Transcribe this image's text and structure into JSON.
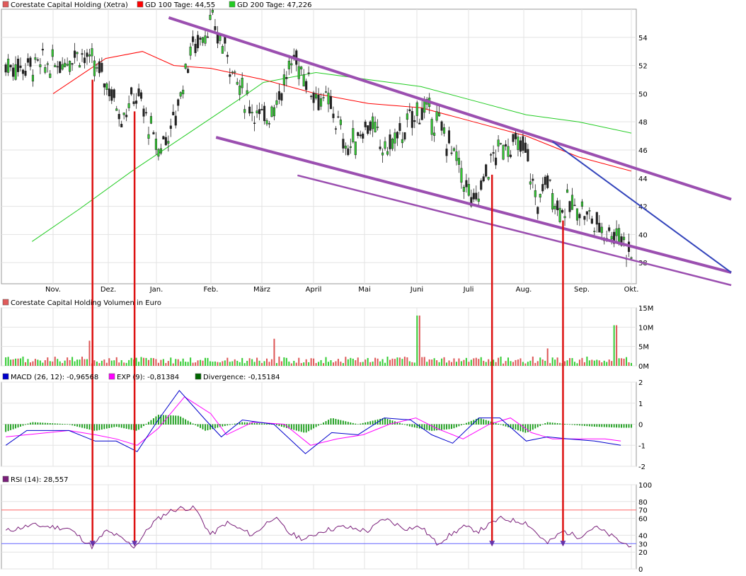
{
  "legends": {
    "price": [
      {
        "label": "Corestate Capital Holding (Xetra)",
        "color": "#e05a5a"
      },
      {
        "label": "GD 100 Tage: 44,55",
        "color": "#ff0000"
      },
      {
        "label": "GD 200 Tage: 47,226",
        "color": "#22cc22"
      }
    ],
    "volume": [
      {
        "label": "Corestate Capital Holding Volumen in Euro",
        "color": "#e05a5a"
      }
    ],
    "macd": [
      {
        "label": "MACD (26, 12): -0,96568",
        "color": "#0000cc"
      },
      {
        "label": "EXP (9): -0,81384",
        "color": "#ff00ff"
      },
      {
        "label": "Divergence: -0,15184",
        "color": "#006600"
      }
    ],
    "rsi": [
      {
        "label": "RSI (14): 28,557",
        "color": "#7a1f7a"
      }
    ]
  },
  "chart_data": {
    "type": "line",
    "months": [
      "Nov.",
      "Dez.",
      "Jan.",
      "Feb.",
      "März",
      "April",
      "Mai",
      "Juni",
      "Juli",
      "Aug.",
      "Sep.",
      "Okt."
    ],
    "price_axis": {
      "ticks": [
        "38",
        "40",
        "42",
        "44",
        "46",
        "48",
        "50",
        "52",
        "54"
      ],
      "ylim": [
        36.5,
        56
      ]
    },
    "volume_axis": {
      "ticks": [
        "0M",
        "5M",
        "10M",
        "15M"
      ],
      "ylim": [
        0,
        15
      ]
    },
    "macd_axis": {
      "ticks": [
        "-2",
        "-1",
        "0",
        "1",
        "2"
      ],
      "ylim": [
        -2,
        2
      ]
    },
    "rsi_axis": {
      "ticks": [
        "0",
        "20",
        "30",
        "40",
        "60",
        "70",
        "80",
        "100"
      ],
      "ylim": [
        0,
        100
      ],
      "levels": [
        30,
        70
      ]
    },
    "price_series": {
      "name": "Corestate Capital Holding (Xetra)",
      "x": [
        0.0,
        0.5,
        1.0,
        1.3,
        1.6,
        2.0,
        2.3,
        2.6,
        3.0,
        3.3,
        3.6,
        4.0,
        4.3,
        4.6,
        5.0,
        5.3,
        5.6,
        6.0,
        6.3,
        6.6,
        7.0,
        7.3,
        7.6,
        8.0,
        8.3,
        8.6,
        9.0,
        9.2,
        9.4,
        9.6,
        10.0,
        10.4,
        10.8,
        11.0
      ],
      "values": [
        52,
        53,
        51,
        48.5,
        50,
        46,
        48,
        53,
        55,
        53,
        50,
        48,
        50,
        52.5,
        50,
        49,
        46,
        48,
        46,
        47,
        49,
        48,
        46,
        42,
        45,
        46.5,
        46,
        42,
        44,
        42,
        42,
        40.5,
        40,
        38.5
      ]
    },
    "gd100": {
      "name": "GD 100 Tage",
      "x": [
        0.0,
        1.0,
        1.7,
        2.3,
        3.0,
        4.0,
        5.0,
        6.0,
        7.0,
        8.0,
        9.0,
        10.0,
        11.0
      ],
      "values": [
        50,
        52.5,
        53,
        52,
        51.8,
        51,
        50,
        49.3,
        49,
        48,
        47,
        45.5,
        44.5
      ]
    },
    "gd200": {
      "name": "GD 200 Tage",
      "x": [
        -0.4,
        0.5,
        1.5,
        2.5,
        3.5,
        4.0,
        5.0,
        6.0,
        7.0,
        8.0,
        9.0,
        10.0,
        11.0
      ],
      "values": [
        39.5,
        41.8,
        44.5,
        47,
        49.5,
        50.8,
        51.5,
        51,
        50.5,
        49.5,
        48.5,
        48,
        47.2
      ]
    },
    "trendlines": [
      {
        "x": [
          2.2,
          12.9
        ],
        "values": [
          55.4,
          42.5
        ]
      },
      {
        "x": [
          3.1,
          12.9
        ],
        "values": [
          46.9,
          37.3
        ]
      },
      {
        "x": [
          4.65,
          12.9
        ],
        "values": [
          44.2,
          36.4
        ]
      },
      {
        "x": [
          9.5,
          12.9
        ],
        "values": [
          46.6,
          37.3
        ]
      }
    ],
    "volume_series": {
      "name": "Volumen",
      "spikes": [
        {
          "x": 0.7,
          "value": 6.5
        },
        {
          "x": 4.2,
          "value": 7
        },
        {
          "x": 6.95,
          "value": 13
        },
        {
          "x": 9.4,
          "value": 4.5
        },
        {
          "x": 10.7,
          "value": 10.5
        }
      ],
      "base": 2
    },
    "macd_series": {
      "name": "MACD (26, 12)",
      "x": [
        -0.9,
        -0.5,
        0.3,
        0.8,
        1.2,
        1.6,
        2.0,
        2.4,
        2.9,
        3.2,
        3.6,
        4.2,
        4.8,
        5.3,
        5.8,
        6.3,
        6.8,
        7.2,
        7.6,
        8.1,
        8.5,
        9.0,
        9.4,
        9.8,
        10.3,
        10.8
      ],
      "values": [
        -1,
        -0.3,
        -0.3,
        -0.8,
        -0.8,
        -1.3,
        0.2,
        1.6,
        0.2,
        -0.6,
        0.2,
        0,
        -1.4,
        -0.4,
        -0.5,
        0.3,
        0.2,
        -0.5,
        -0.9,
        0.3,
        0.3,
        -0.8,
        -0.6,
        -0.7,
        -0.8,
        -1
      ]
    },
    "exp_series": {
      "name": "EXP (9)",
      "x": [
        -0.9,
        -0.5,
        0.3,
        0.8,
        1.2,
        1.6,
        2.0,
        2.5,
        3.0,
        3.3,
        3.8,
        4.4,
        4.9,
        5.4,
        5.9,
        6.4,
        6.9,
        7.3,
        7.8,
        8.3,
        8.7,
        9.1,
        9.5,
        10.0,
        10.5,
        10.8
      ],
      "values": [
        -0.6,
        -0.5,
        -0.3,
        -0.5,
        -0.7,
        -1,
        -0.2,
        1.3,
        0.5,
        -0.5,
        0.1,
        0,
        -1,
        -0.7,
        -0.5,
        0,
        0.3,
        -0.2,
        -0.7,
        0,
        0.3,
        -0.4,
        -0.7,
        -0.7,
        -0.7,
        -0.8
      ]
    },
    "divergence_series": {
      "name": "Divergence",
      "x": [
        -0.9,
        -0.4,
        0.3,
        0.8,
        1.2,
        1.6,
        2.0,
        2.4,
        2.9,
        3.2,
        3.6,
        4.2,
        4.8,
        5.3,
        5.8,
        6.3,
        6.8,
        7.2,
        7.6,
        8.1,
        8.5,
        9.0,
        9.4,
        9.8,
        10.3,
        10.8
      ],
      "values": [
        -0.35,
        0.1,
        0,
        -0.3,
        -0.1,
        -0.3,
        0.45,
        0.4,
        -0.3,
        -0.1,
        0.1,
        0,
        -0.4,
        0.3,
        0,
        0.3,
        -0.1,
        -0.3,
        -0.2,
        0.3,
        0,
        -0.4,
        0.1,
        0,
        -0.1,
        -0.15
      ]
    },
    "rsi_series": {
      "name": "RSI (14)",
      "x": [
        -0.9,
        -0.4,
        0.3,
        0.75,
        1.0,
        1.2,
        1.55,
        1.9,
        2.2,
        2.4,
        2.7,
        3.0,
        3.3,
        3.8,
        4.2,
        4.5,
        4.8,
        5.1,
        5.5,
        6.0,
        6.3,
        6.7,
        7.0,
        7.3,
        7.8,
        8.1,
        8.5,
        9.0,
        9.4,
        9.7,
        10.0,
        10.3,
        10.6,
        10.85,
        11.0
      ],
      "values": [
        45,
        52,
        48,
        26,
        45,
        40,
        26,
        55,
        68,
        72,
        72,
        40,
        55,
        40,
        62,
        42,
        35,
        45,
        50,
        45,
        60,
        48,
        50,
        30,
        50,
        45,
        60,
        55,
        30,
        45,
        38,
        50,
        40,
        30,
        28.5
      ]
    },
    "markers": [
      0.75,
      1.55,
      8.35,
      9.7
    ]
  }
}
